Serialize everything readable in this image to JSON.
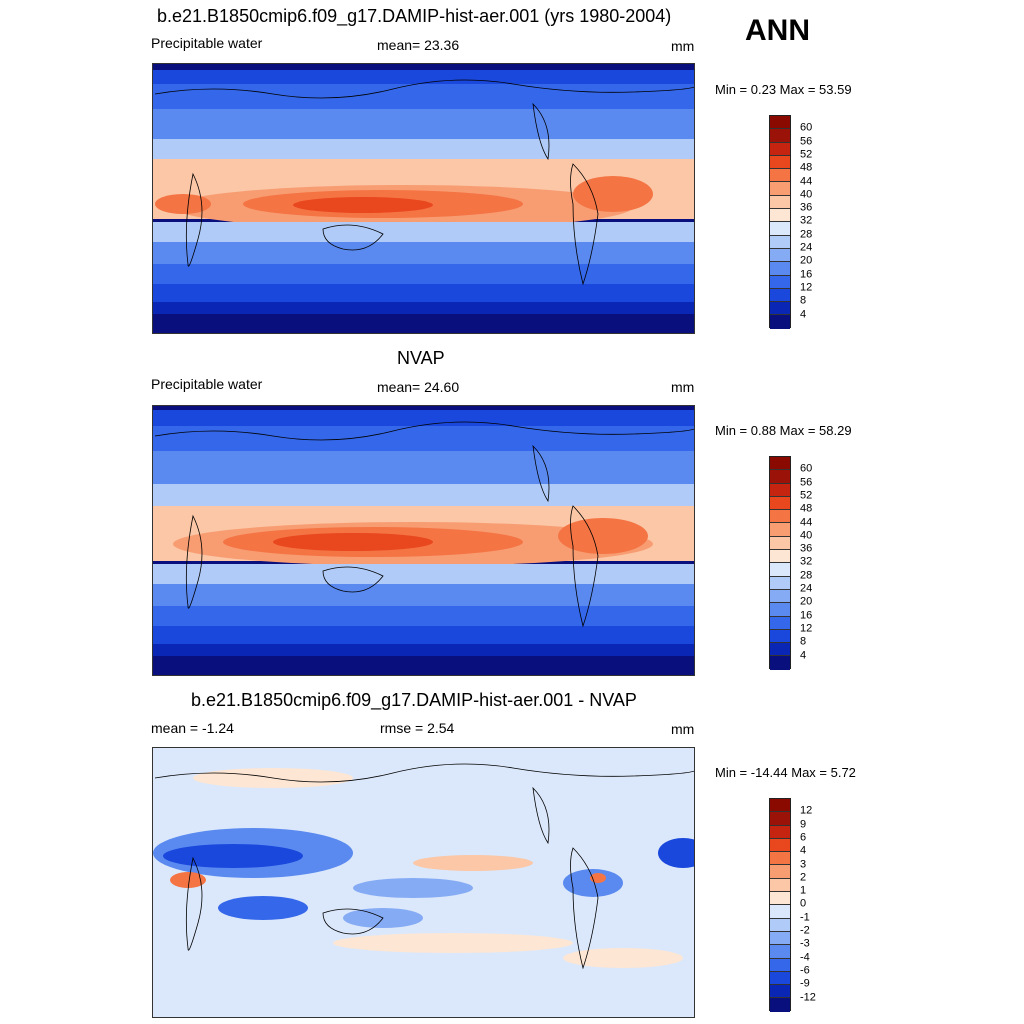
{
  "header": {
    "title": "b.e21.B1850cmip6.f09_g17.DAMIP-hist-aer.001 (yrs 1980-2004)",
    "season": "ANN"
  },
  "panels": [
    {
      "title": "",
      "left": "Precipitable water",
      "middle": "mean=  23.36",
      "units": "mm",
      "minmax": "Min =   0.23 Max =  53.59",
      "colorbar": {
        "labels": [
          "60",
          "56",
          "52",
          "48",
          "44",
          "40",
          "36",
          "32",
          "28",
          "24",
          "20",
          "16",
          "12",
          "8",
          "4"
        ]
      }
    },
    {
      "title": "NVAP",
      "left": "Precipitable water",
      "middle": "mean=  24.60",
      "units": "mm",
      "minmax": "Min =   0.88 Max =  58.29",
      "colorbar": {
        "labels": [
          "60",
          "56",
          "52",
          "48",
          "44",
          "40",
          "36",
          "32",
          "28",
          "24",
          "20",
          "16",
          "12",
          "8",
          "4"
        ]
      }
    },
    {
      "title": "b.e21.B1850cmip6.f09_g17.DAMIP-hist-aer.001 - NVAP",
      "left": "mean =  -1.24",
      "middle": "rmse =   2.54",
      "units": "mm",
      "minmax": "Min = -14.44 Max =   5.72",
      "colorbar": {
        "labels": [
          "12",
          "9",
          "6",
          "4",
          "3",
          "2",
          "1",
          "0",
          "-1",
          "-2",
          "-3",
          "-4",
          "-6",
          "-9",
          "-12"
        ]
      }
    }
  ],
  "colors": {
    "abs_scale": [
      "#0a0f7e",
      "#0a26b4",
      "#1b48dc",
      "#3467ea",
      "#5a8af0",
      "#86abf5",
      "#b0cbf8",
      "#dbe8fb",
      "#fde6d4",
      "#fbc7a6",
      "#f89c72",
      "#f47444",
      "#e9471e",
      "#c52510",
      "#9a1208",
      "#8a0a00"
    ],
    "diff_scale": [
      "#0a0f7e",
      "#0a26b4",
      "#1b48dc",
      "#3467ea",
      "#5a8af0",
      "#86abf5",
      "#b0cbf8",
      "#dbe8fb",
      "#fde6d4",
      "#fbc7a6",
      "#f89c72",
      "#f47444",
      "#e9471e",
      "#c52510",
      "#9a1208",
      "#8a0a00"
    ],
    "coastline": "#000000"
  }
}
